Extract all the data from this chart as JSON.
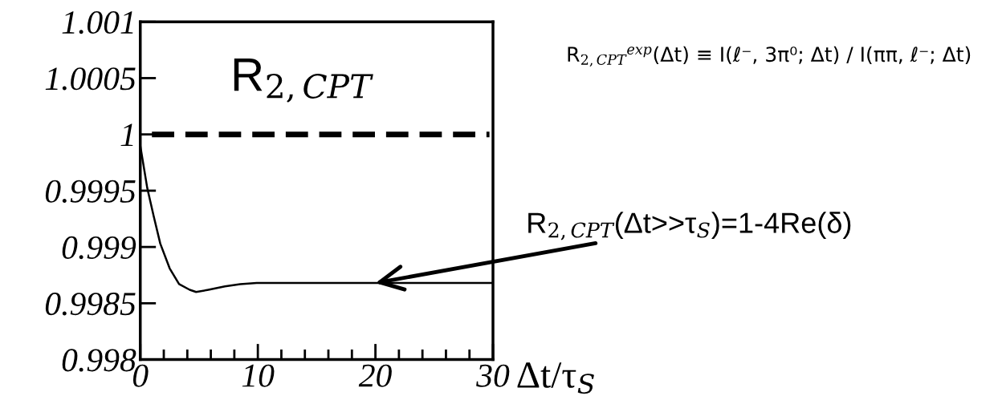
{
  "chart_data": {
    "type": "line",
    "x": [
      0,
      0.6,
      1.15,
      1.7,
      2.5,
      3.3,
      4.2,
      4.75,
      5.8,
      7.2,
      8.5,
      9.9,
      12,
      15,
      20,
      25,
      30
    ],
    "series": [
      {
        "color": "#000000",
        "values": [
          0.9999,
          0.99952,
          0.99927,
          0.99903,
          0.99881,
          0.99867,
          0.99862,
          0.9986,
          0.99862,
          0.99865,
          0.99867,
          0.99868,
          0.99868,
          0.99868,
          0.99868,
          0.99868,
          0.99868
        ]
      }
    ],
    "xlabel": "Δt/τ$_{S}$",
    "xlim": [
      0,
      30
    ],
    "xticks": [
      0,
      10,
      20,
      30
    ],
    "ylim": [
      0.998,
      1.001
    ],
    "yticks": [
      0.998,
      0.9985,
      0.999,
      0.9995,
      1,
      1.0005,
      1.001
    ],
    "ref_lines": [
      {
        "axis": "y",
        "value": 1,
        "color": "#000000",
        "line_style": "dashed"
      }
    ],
    "annotations": [
      "R$_{2,CPT}$",
      "R$_{2,CPT}$$^{exp}$(Δt) ≡ I(ℓ⁻, 3π⁰; Δt) / I(ππ, ℓ⁻; Δt)",
      {
        "text": "R$_{2,CPT}$(Δt>>τ$_{S}$)=1-4Re(δ)",
        "x": 20,
        "y": 0.99868
      }
    ],
    "grid": false,
    "legend": false,
    "marker": "none",
    "line_style": "solid"
  }
}
